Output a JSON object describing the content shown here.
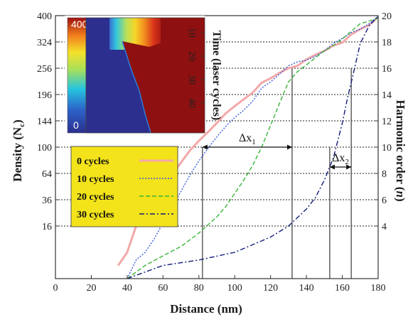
{
  "chart_data": {
    "type": "line",
    "xlabel": "Distance (nm)",
    "ylabel": "Density (N",
    "ylabel_sub": "c",
    "ylabel_suffix": ")",
    "y2label": "Harmonic order (",
    "y2label_italic": "n",
    "y2label_suffix": ")",
    "xlim": [
      0,
      180
    ],
    "ylim": [
      0,
      400
    ],
    "y_scale": "sqrt",
    "y2lim": [
      0,
      20
    ],
    "x_ticks": [
      0,
      20,
      40,
      60,
      80,
      100,
      120,
      140,
      160,
      180
    ],
    "y_ticks": [
      16,
      36,
      64,
      100,
      144,
      196,
      256,
      324,
      400
    ],
    "y_tick_labels": [
      "16",
      "36",
      "64",
      "100",
      "144",
      "196",
      "256",
      "324",
      "400"
    ],
    "y2_ticks": [
      4,
      6,
      8,
      10,
      12,
      14,
      16,
      18,
      20
    ],
    "y2_tick_labels": [
      "4",
      "6",
      "8",
      "10",
      "12",
      "14",
      "16",
      "18",
      "20"
    ],
    "grid": "horizontal dotted",
    "legend_position": "left",
    "series": [
      {
        "name": "0 cycles",
        "color": "#f4a8a8",
        "style": "solid",
        "x": [
          35,
          40,
          45,
          50,
          55,
          60,
          65,
          70,
          75,
          80,
          85,
          90,
          95,
          100,
          105,
          110,
          115,
          120,
          125,
          130,
          135,
          140,
          145,
          150,
          155,
          160,
          165,
          170,
          175,
          180
        ],
        "y": [
          1,
          4,
          16,
          28,
          40,
          52,
          62,
          78,
          95,
          110,
          124,
          140,
          158,
          172,
          186,
          200,
          222,
          232,
          245,
          256,
          262,
          278,
          290,
          300,
          314,
          322,
          345,
          360,
          372,
          396
        ]
      },
      {
        "name": "10 cycles",
        "color": "#3c5bd6",
        "style": "dotted",
        "x": [
          40,
          45,
          50,
          55,
          60,
          65,
          70,
          75,
          80,
          85,
          90,
          95,
          100,
          105,
          110,
          115,
          120,
          125,
          130,
          135,
          140,
          145,
          150,
          155,
          160,
          165,
          170,
          175,
          180
        ],
        "y": [
          0,
          2,
          4,
          9,
          18,
          30,
          44,
          62,
          80,
          98,
          116,
          134,
          150,
          164,
          182,
          210,
          224,
          242,
          262,
          272,
          276,
          286,
          300,
          320,
          334,
          350,
          360,
          376,
          398
        ]
      },
      {
        "name": "20 cycles",
        "color": "#3ab53a",
        "style": "dashed",
        "x": [
          40,
          50,
          60,
          70,
          80,
          90,
          95,
          100,
          105,
          110,
          115,
          120,
          125,
          130,
          135,
          140,
          145,
          150,
          155,
          160,
          165,
          170,
          175,
          180
        ],
        "y": [
          0,
          1,
          3,
          6,
          12,
          22,
          30,
          42,
          56,
          74,
          100,
          136,
          178,
          224,
          248,
          264,
          282,
          300,
          314,
          332,
          354,
          376,
          384,
          392
        ]
      },
      {
        "name": "30 cycles",
        "color": "#111a7a",
        "style": "dashdot",
        "x": [
          40,
          60,
          80,
          100,
          120,
          130,
          140,
          145,
          150,
          155,
          160,
          163,
          166,
          170,
          175,
          180
        ],
        "y": [
          0,
          1,
          2,
          4,
          10,
          16,
          28,
          38,
          56,
          84,
          140,
          190,
          240,
          320,
          370,
          398
        ]
      }
    ],
    "annotations": [
      {
        "label": "Δx",
        "sub": "1",
        "x_start": 82,
        "x_end": 132,
        "y": 100
      },
      {
        "label": "Δx",
        "sub": "2",
        "x_start": 153,
        "x_end": 165,
        "y": 72
      }
    ],
    "verticals": [
      {
        "x": 82,
        "y_top": 100
      },
      {
        "x": 132,
        "y_top": 256
      },
      {
        "x": 153,
        "y_top": 100
      },
      {
        "x": 165,
        "y_top": 256
      }
    ],
    "inset": {
      "type": "heatmap",
      "colorbar_max_label": "400",
      "colorbar_min_label": "0",
      "ylabel": "Time (laser cycles)",
      "y_ticks": [
        10,
        20,
        30,
        40
      ],
      "colors": {
        "low": "#2b3a9a",
        "high": "#8e1010"
      }
    }
  }
}
